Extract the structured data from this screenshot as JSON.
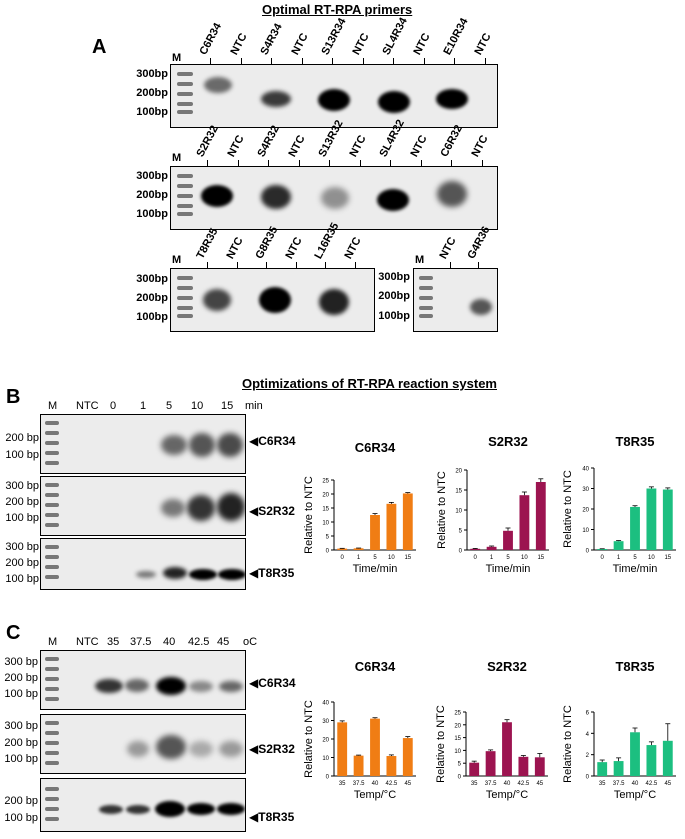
{
  "panelA": {
    "title": "Optimal RT-RPA primers",
    "letter": "A",
    "size_labels": [
      "300bp",
      "200bp",
      "100bp"
    ],
    "marker": "M",
    "gel1_lanes": [
      "C6R34",
      "NTC",
      "S4R34",
      "NTC",
      "S13R34",
      "NTC",
      "SL4R34",
      "NTC",
      "E10R34",
      "NTC"
    ],
    "gel2_lanes": [
      "S2R32",
      "NTC",
      "S4R32",
      "NTC",
      "S13R32",
      "NTC",
      "SL4R32",
      "NTC",
      "C6R32",
      "NTC"
    ],
    "gel3_lanes": [
      "T8R35",
      "NTC",
      "G8R35",
      "NTC",
      "L16R35",
      "NTC"
    ],
    "gel4_lanes": [
      "NTC",
      "G4R36"
    ]
  },
  "panelB": {
    "title": "Optimizations of RT-RPA reaction system",
    "letter": "B",
    "lane_header": [
      "M",
      "NTC",
      "0",
      "1",
      "5",
      "10",
      "15",
      "min"
    ],
    "size_labels": [
      "200 bp",
      "100 bp",
      "300 bp",
      "200 bp",
      "100 bp",
      "300 bp",
      "200 bp",
      "100 bp"
    ],
    "gel_labels": [
      "C6R34",
      "S2R32",
      "T8R35"
    ]
  },
  "panelC": {
    "letter": "C",
    "lane_header": [
      "M",
      "NTC",
      "35",
      "37.5",
      "40",
      "42.5",
      "45",
      "oC"
    ],
    "size_labels": [
      "300 bp",
      "200 bp",
      "100 bp",
      "300 bp",
      "200 bp",
      "100 bp",
      "200 bp",
      "100 bp"
    ],
    "gel_labels": [
      "C6R34",
      "S2R32",
      "T8R35"
    ]
  },
  "chart_data": [
    {
      "type": "bar",
      "title": "C6R34",
      "categories": [
        "0",
        "1",
        "5",
        "10",
        "15"
      ],
      "values": [
        0.5,
        0.6,
        12.5,
        16.5,
        20.2
      ],
      "errors": [
        0.1,
        0.1,
        0.5,
        0.5,
        0.3
      ],
      "xlabel": "Time/min",
      "ylabel": "Relative to NTC",
      "ylim": [
        0,
        25
      ],
      "yticks": [
        0,
        5,
        10,
        15,
        20,
        25
      ],
      "color": "#f07d14"
    },
    {
      "type": "bar",
      "title": "S2R32",
      "categories": [
        "0",
        "1",
        "5",
        "10",
        "15"
      ],
      "values": [
        0.3,
        0.8,
        4.8,
        13.7,
        17.0
      ],
      "errors": [
        0.1,
        0.2,
        0.7,
        0.8,
        0.8
      ],
      "xlabel": "Time/min",
      "ylabel": "Relative to NTC",
      "ylim": [
        0,
        20
      ],
      "yticks": [
        0,
        5,
        10,
        15,
        20
      ],
      "color": "#9c1450"
    },
    {
      "type": "bar",
      "title": "T8R35",
      "categories": [
        "0",
        "1",
        "5",
        "10",
        "15"
      ],
      "values": [
        0.5,
        4.3,
        21.0,
        30.0,
        29.5
      ],
      "errors": [
        0.1,
        0.3,
        0.6,
        0.8,
        0.8
      ],
      "xlabel": "Time/min",
      "ylabel": "Relative to NTC",
      "ylim": [
        0,
        40
      ],
      "yticks": [
        0,
        10,
        20,
        30,
        40
      ],
      "color": "#1cbf80"
    },
    {
      "type": "bar",
      "title": "C6R34",
      "categories": [
        "35",
        "37.5",
        "40",
        "42.5",
        "45"
      ],
      "values": [
        29.0,
        11.0,
        31.0,
        10.8,
        20.5
      ],
      "errors": [
        0.8,
        0.3,
        0.5,
        0.6,
        0.8
      ],
      "xlabel": "Temp/°C",
      "ylabel": "Relative to NTC",
      "ylim": [
        0,
        40
      ],
      "yticks": [
        0,
        10,
        20,
        30,
        40
      ],
      "color": "#f07d14"
    },
    {
      "type": "bar",
      "title": "S2R32",
      "categories": [
        "35",
        "37.5",
        "40",
        "42.5",
        "45"
      ],
      "values": [
        5.2,
        9.7,
        21.0,
        7.5,
        7.3
      ],
      "errors": [
        0.6,
        0.5,
        1.0,
        0.5,
        1.5
      ],
      "xlabel": "Temp/°C",
      "ylabel": "Relative to NTC",
      "ylim": [
        0,
        25
      ],
      "yticks": [
        0,
        5,
        10,
        15,
        20,
        25
      ],
      "color": "#9c1450"
    },
    {
      "type": "bar",
      "title": "T8R35",
      "categories": [
        "35",
        "37.5",
        "40",
        "42.5",
        "45"
      ],
      "values": [
        1.3,
        1.4,
        4.1,
        2.9,
        3.3
      ],
      "errors": [
        0.2,
        0.3,
        0.4,
        0.3,
        1.6
      ],
      "xlabel": "Temp/°C",
      "ylabel": "Relative to NTC",
      "ylim": [
        0,
        6
      ],
      "yticks": [
        0,
        2,
        4,
        6
      ],
      "color": "#1cbf80"
    }
  ]
}
